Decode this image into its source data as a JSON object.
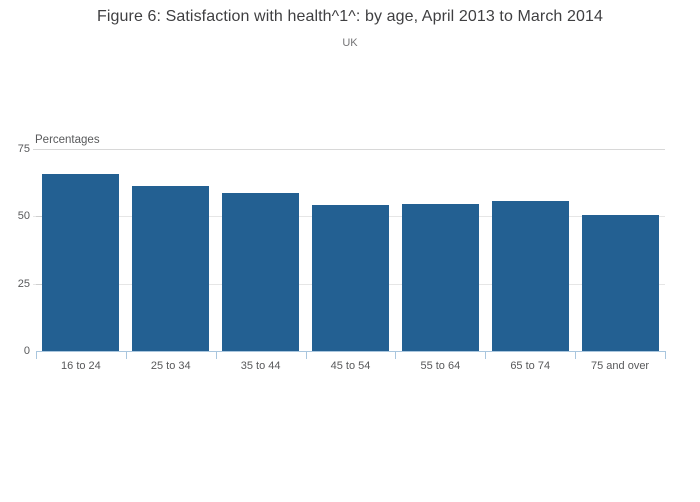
{
  "chart_data": {
    "type": "bar",
    "title": "Figure 6: Satisfaction with health^1^: by age, April 2013 to March 2014",
    "subtitle": "UK",
    "ylabel": "Percentages",
    "xlabel": "",
    "categories": [
      "16 to 24",
      "25 to 34",
      "35 to 44",
      "45 to 54",
      "55 to 64",
      "65 to 74",
      "75 and over"
    ],
    "values": [
      65.7,
      61.2,
      58.8,
      54.1,
      54.6,
      55.8,
      50.5
    ],
    "yticks": [
      0,
      25,
      50,
      75
    ],
    "ylim": [
      0,
      75
    ],
    "grid": true,
    "legend": false,
    "colors": {
      "bar": "#236092",
      "axis_line": "#a9c6de",
      "grid_line": "#e6e6e6",
      "title_text": "#3f3f41",
      "axis_text": "#58595b"
    }
  }
}
